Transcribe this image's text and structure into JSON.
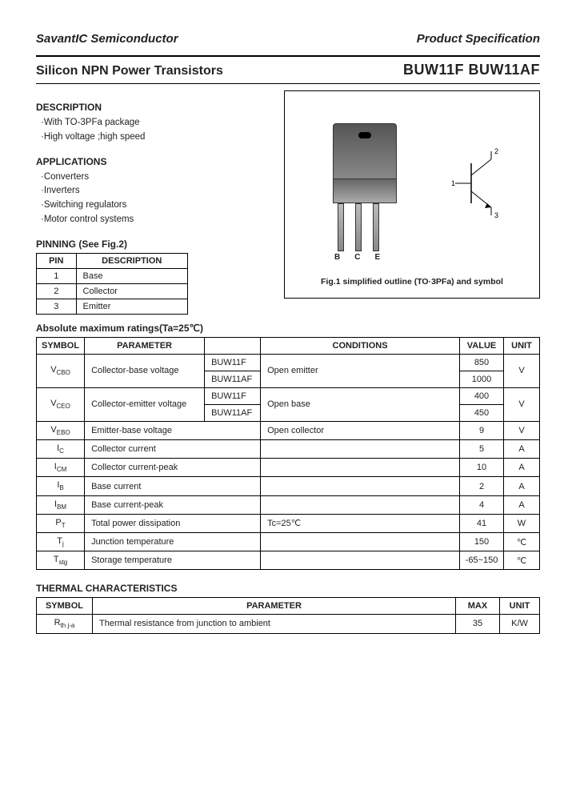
{
  "header": {
    "company": "SavantIC Semiconductor",
    "spec": "Product Specification"
  },
  "title": {
    "left": "Silicon NPN Power Transistors",
    "right": "BUW11F BUW11AF"
  },
  "description": {
    "heading": "DESCRIPTION",
    "items": [
      "·With TO-3PFa package",
      "·High voltage ;high speed"
    ]
  },
  "applications": {
    "heading": "APPLICATIONS",
    "items": [
      "·Converters",
      "·Inverters",
      "·Switching regulators",
      "·Motor control systems"
    ]
  },
  "pinning": {
    "heading": "PINNING (See Fig.2)",
    "cols": [
      "PIN",
      "DESCRIPTION"
    ],
    "rows": [
      {
        "pin": "1",
        "desc": "Base"
      },
      {
        "pin": "2",
        "desc": "Collector"
      },
      {
        "pin": "3",
        "desc": "Emitter"
      }
    ],
    "lead_labels": [
      "B",
      "C",
      "E"
    ]
  },
  "figure": {
    "caption": "Fig.1 simplified outline (TO·3PFa) and symbol"
  },
  "amr": {
    "heading": "Absolute maximum ratings(Ta=25℃)",
    "cols": [
      "SYMBOL",
      "PARAMETER",
      "",
      "CONDITIONS",
      "VALUE",
      "UNIT"
    ],
    "rows": [
      {
        "symbol": "V",
        "sub": "CBO",
        "param": "Collector-base voltage",
        "part1": "BUW11F",
        "part2": "BUW11AF",
        "cond": "Open emitter",
        "val1": "850",
        "val2": "1000",
        "unit": "V",
        "dual": true
      },
      {
        "symbol": "V",
        "sub": "CEO",
        "param": "Collector-emitter voltage",
        "part1": "BUW11F",
        "part2": "BUW11AF",
        "cond": "Open base",
        "val1": "400",
        "val2": "450",
        "unit": "V",
        "dual": true
      },
      {
        "symbol": "V",
        "sub": "EBO",
        "param": "Emitter-base voltage",
        "cond": "Open collector",
        "val": "9",
        "unit": "V"
      },
      {
        "symbol": "I",
        "sub": "C",
        "param": "Collector current",
        "cond": "",
        "val": "5",
        "unit": "A"
      },
      {
        "symbol": "I",
        "sub": "CM",
        "param": "Collector current-peak",
        "cond": "",
        "val": "10",
        "unit": "A"
      },
      {
        "symbol": "I",
        "sub": "B",
        "param": "Base current",
        "cond": "",
        "val": "2",
        "unit": "A"
      },
      {
        "symbol": "I",
        "sub": "BM",
        "param": "Base current-peak",
        "cond": "",
        "val": "4",
        "unit": "A"
      },
      {
        "symbol": "P",
        "sub": "T",
        "param": "Total power dissipation",
        "cond": "Tc=25℃",
        "val": "41",
        "unit": "W"
      },
      {
        "symbol": "T",
        "sub": "j",
        "param": "Junction temperature",
        "cond": "",
        "val": "150",
        "unit": "℃"
      },
      {
        "symbol": "T",
        "sub": "stg",
        "param": "Storage temperature",
        "cond": "",
        "val": "-65~150",
        "unit": "℃"
      }
    ]
  },
  "thermal": {
    "heading": "THERMAL CHARACTERISTICS",
    "cols": [
      "SYMBOL",
      "PARAMETER",
      "MAX",
      "UNIT"
    ],
    "rows": [
      {
        "symbol": "R",
        "sub": "th j-a",
        "param": "Thermal resistance from junction to ambient",
        "max": "35",
        "unit": "K/W"
      }
    ]
  },
  "symbol_pins": {
    "p1": "1",
    "p2": "2",
    "p3": "3"
  }
}
